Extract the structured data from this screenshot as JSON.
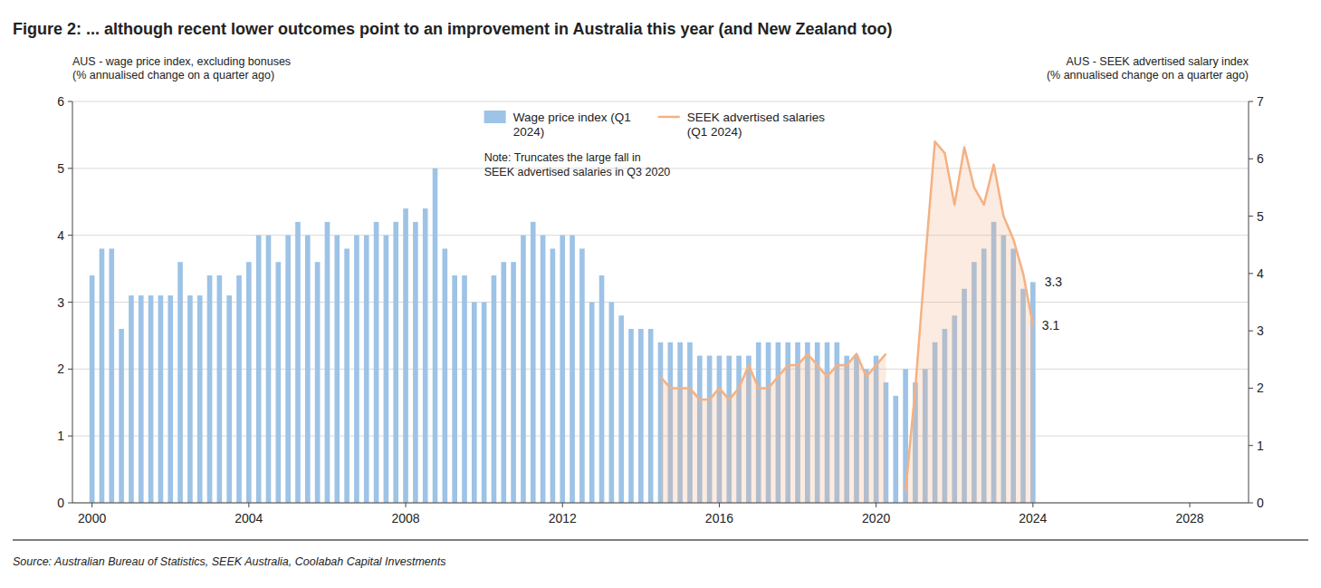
{
  "chart_data": {
    "type": "bar",
    "title": "Figure 2: ... although recent lower outcomes point to an improvement in Australia this year (and New Zealand too)",
    "ylabel": "AUS - wage price index, excluding bonuses\n(% annualised change on a quarter ago)",
    "y2label": "AUS - SEEK advertised salary index\n(% annualised change on a quarter ago)",
    "source": "Source: Australian Bureau of Statistics, SEEK Australia, Coolabah Capital Investments",
    "annotations": [
      "Note: Truncates the large fall in\nSEEK advertised salaries in Q3 2020",
      "3.3",
      "3.1"
    ],
    "x": [
      2000.0,
      2000.25,
      2000.5,
      2000.75,
      2001.0,
      2001.25,
      2001.5,
      2001.75,
      2002.0,
      2002.25,
      2002.5,
      2002.75,
      2003.0,
      2003.25,
      2003.5,
      2003.75,
      2004.0,
      2004.25,
      2004.5,
      2004.75,
      2005.0,
      2005.25,
      2005.5,
      2005.75,
      2006.0,
      2006.25,
      2006.5,
      2006.75,
      2007.0,
      2007.25,
      2007.5,
      2007.75,
      2008.0,
      2008.25,
      2008.5,
      2008.75,
      2009.0,
      2009.25,
      2009.5,
      2009.75,
      2010.0,
      2010.25,
      2010.5,
      2010.75,
      2011.0,
      2011.25,
      2011.5,
      2011.75,
      2012.0,
      2012.25,
      2012.5,
      2012.75,
      2013.0,
      2013.25,
      2013.5,
      2013.75,
      2014.0,
      2014.25,
      2014.5,
      2014.75,
      2015.0,
      2015.25,
      2015.5,
      2015.75,
      2016.0,
      2016.25,
      2016.5,
      2016.75,
      2017.0,
      2017.25,
      2017.5,
      2017.75,
      2018.0,
      2018.25,
      2018.5,
      2018.75,
      2019.0,
      2019.25,
      2019.5,
      2019.75,
      2020.0,
      2020.25,
      2020.5,
      2020.75,
      2021.0,
      2021.25,
      2021.5,
      2021.75,
      2022.0,
      2022.25,
      2022.5,
      2022.75,
      2023.0,
      2023.25,
      2023.5,
      2023.75,
      2024.0
    ],
    "series": [
      {
        "name": "Wage price index (Q1\n2024)",
        "type": "bar",
        "color": "#9dc3e6",
        "values": [
          3.4,
          3.8,
          3.8,
          2.6,
          3.1,
          3.1,
          3.1,
          3.1,
          3.1,
          3.6,
          3.1,
          3.1,
          3.4,
          3.4,
          3.1,
          3.4,
          3.6,
          4.0,
          4.0,
          3.6,
          4.0,
          4.2,
          4.0,
          3.6,
          4.2,
          4.0,
          3.8,
          4.0,
          4.0,
          4.2,
          4.0,
          4.2,
          4.4,
          4.2,
          4.4,
          5.0,
          3.8,
          3.4,
          3.4,
          3.0,
          3.0,
          3.4,
          3.6,
          3.6,
          4.0,
          4.2,
          4.0,
          3.8,
          4.0,
          4.0,
          3.8,
          3.0,
          3.4,
          3.0,
          2.8,
          2.6,
          2.6,
          2.6,
          2.4,
          2.4,
          2.4,
          2.4,
          2.2,
          2.2,
          2.2,
          2.2,
          2.2,
          2.2,
          2.4,
          2.4,
          2.4,
          2.4,
          2.4,
          2.4,
          2.4,
          2.4,
          2.4,
          2.2,
          2.2,
          2.0,
          2.2,
          1.8,
          1.6,
          2.0,
          1.8,
          2.0,
          2.4,
          2.6,
          2.8,
          3.2,
          3.6,
          3.8,
          4.2,
          4.0,
          3.8,
          3.2,
          3.3
        ]
      },
      {
        "name": "SEEK advertised salaries\n(Q1 2024)",
        "type": "line",
        "axis": "y2",
        "color": "#f4b183",
        "values": [
          null,
          null,
          null,
          null,
          null,
          null,
          null,
          null,
          null,
          null,
          null,
          null,
          null,
          null,
          null,
          null,
          null,
          null,
          null,
          null,
          null,
          null,
          null,
          null,
          null,
          null,
          null,
          null,
          null,
          null,
          null,
          null,
          null,
          null,
          null,
          null,
          null,
          null,
          null,
          null,
          null,
          null,
          null,
          null,
          null,
          null,
          null,
          null,
          null,
          null,
          null,
          null,
          null,
          null,
          null,
          null,
          null,
          null,
          2.2,
          2.0,
          2.0,
          2.0,
          1.8,
          1.8,
          2.0,
          1.8,
          2.0,
          2.4,
          2.0,
          2.0,
          2.2,
          2.4,
          2.4,
          2.6,
          2.4,
          2.2,
          2.4,
          2.4,
          2.6,
          2.2,
          2.4,
          2.6,
          null,
          0.2,
          2.0,
          4.2,
          6.3,
          6.1,
          5.2,
          6.2,
          5.5,
          5.2,
          5.9,
          5.0,
          4.6,
          4.0,
          3.1
        ]
      }
    ],
    "xlim": [
      1999.5,
      2029.5
    ],
    "xticks": [
      2000,
      2004,
      2008,
      2012,
      2016,
      2020,
      2024,
      2028
    ],
    "ylim": [
      0,
      6
    ],
    "yticks": [
      0,
      1,
      2,
      3,
      4,
      5,
      6
    ],
    "y2lim": [
      0,
      7
    ],
    "y2ticks": [
      0,
      1,
      2,
      3,
      4,
      5,
      6,
      7
    ],
    "grid": true,
    "legend": "top"
  }
}
